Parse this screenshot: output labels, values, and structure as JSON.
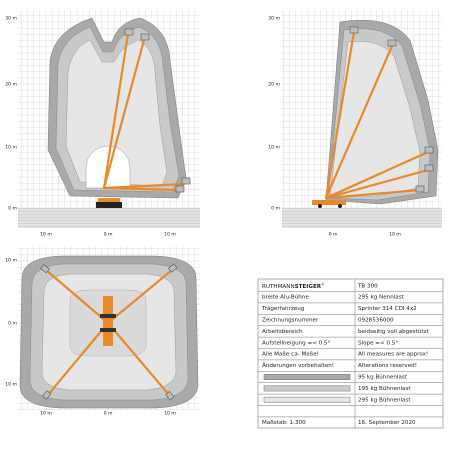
{
  "side_view": {
    "y_labels": [
      "30 m",
      "20 m",
      "10 m",
      "0 m"
    ],
    "x_labels": [
      "10 m",
      "0 m",
      "10 m"
    ]
  },
  "rear_view": {
    "y_labels": [
      "30 m",
      "20 m",
      "10 m",
      "0 m"
    ],
    "x_labels": [
      "0 m",
      "10 m"
    ]
  },
  "top_view": {
    "y_labels": [
      "10 m",
      "0 m",
      "10 m"
    ],
    "x_labels": [
      "10 m",
      "0 m",
      "10 m"
    ]
  },
  "table": {
    "brand": "RUTHMANN",
    "brand_bold": "STEIGER",
    "brand_mark": "®",
    "model": "TB 300",
    "rows": [
      [
        "breite Alu-Bühne",
        "295 kg Nennlast"
      ],
      [
        "Trägerfahrzeug",
        "Sprinter 314 CDI 4x2"
      ],
      [
        "Zeichnungsnummer",
        "0928536000"
      ],
      [
        "Arbeitsbereich",
        "beidseitig voll abgestützt"
      ],
      [
        "Aufstellneigung =< 0.5°",
        "Slope =< 0.5°"
      ],
      [
        "Alle Maße ca- Maße!",
        "All measures are approx!"
      ],
      [
        "Änderungen vorbehalten!",
        "Alterations reserved!"
      ]
    ],
    "legend": [
      "95 kg Bühnenlast",
      "195 kg Bühnenlast",
      "295 kg Bühnenlast"
    ],
    "scale": "Maßstab: 1:300",
    "date": "16. September 2020"
  }
}
